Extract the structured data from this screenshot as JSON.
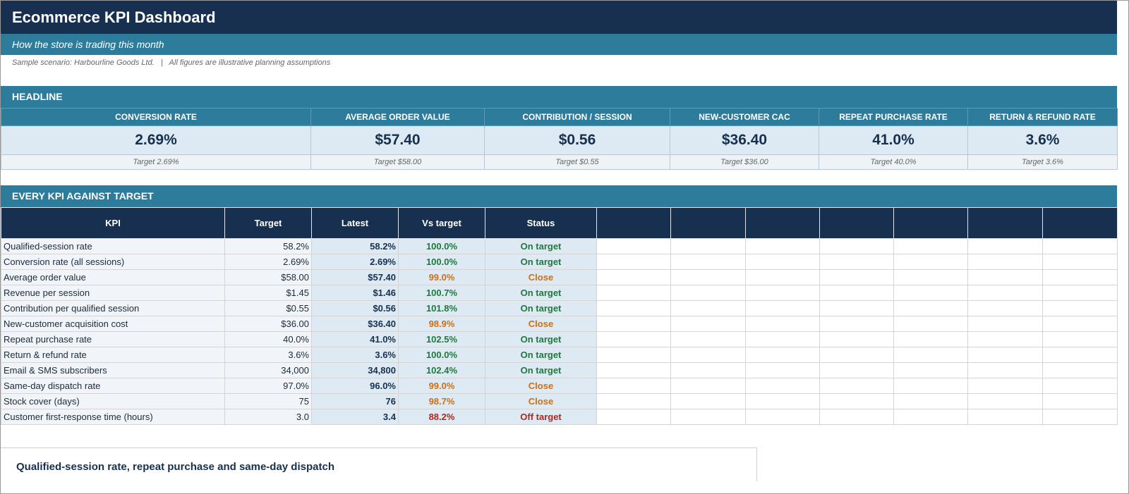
{
  "header": {
    "title": "Ecommerce KPI Dashboard",
    "subtitle": "How the store is trading this month",
    "sample_note": "Sample scenario: Harbourline Goods Ltd.   |   All figures are illustrative planning assumptions"
  },
  "headline": {
    "section_label": "HEADLINE",
    "cards": [
      {
        "label": "CONVERSION RATE",
        "value": "2.69%",
        "target": "Target 2.69%"
      },
      {
        "label": "AVERAGE ORDER VALUE",
        "value": "$57.40",
        "target": "Target $58.00"
      },
      {
        "label": "CONTRIBUTION / SESSION",
        "value": "$0.56",
        "target": "Target $0.55"
      },
      {
        "label": "NEW-CUSTOMER CAC",
        "value": "$36.40",
        "target": "Target $36.00"
      },
      {
        "label": "REPEAT PURCHASE RATE",
        "value": "41.0%",
        "target": "Target 40.0%"
      },
      {
        "label": "RETURN & REFUND RATE",
        "value": "3.6%",
        "target": "Target 3.6%"
      }
    ]
  },
  "kpi_table": {
    "section_label": "EVERY KPI AGAINST TARGET",
    "columns": [
      "KPI",
      "Target",
      "Latest",
      "Vs target",
      "Status"
    ],
    "rows": [
      {
        "kpi": "Qualified-session rate",
        "target": "58.2%",
        "latest": "58.2%",
        "vs": "100.0%",
        "status": "On target",
        "level": "green"
      },
      {
        "kpi": "Conversion rate (all sessions)",
        "target": "2.69%",
        "latest": "2.69%",
        "vs": "100.0%",
        "status": "On target",
        "level": "green"
      },
      {
        "kpi": "Average order value",
        "target": "$58.00",
        "latest": "$57.40",
        "vs": "99.0%",
        "status": "Close",
        "level": "orange"
      },
      {
        "kpi": "Revenue per session",
        "target": "$1.45",
        "latest": "$1.46",
        "vs": "100.7%",
        "status": "On target",
        "level": "green"
      },
      {
        "kpi": "Contribution per qualified session",
        "target": "$0.55",
        "latest": "$0.56",
        "vs": "101.8%",
        "status": "On target",
        "level": "green"
      },
      {
        "kpi": "New-customer acquisition cost",
        "target": "$36.00",
        "latest": "$36.40",
        "vs": "98.9%",
        "status": "Close",
        "level": "orange"
      },
      {
        "kpi": "Repeat purchase rate",
        "target": "40.0%",
        "latest": "41.0%",
        "vs": "102.5%",
        "status": "On target",
        "level": "green"
      },
      {
        "kpi": "Return & refund rate",
        "target": "3.6%",
        "latest": "3.6%",
        "vs": "100.0%",
        "status": "On target",
        "level": "green"
      },
      {
        "kpi": "Email & SMS subscribers",
        "target": "34,000",
        "latest": "34,800",
        "vs": "102.4%",
        "status": "On target",
        "level": "green"
      },
      {
        "kpi": "Same-day dispatch rate",
        "target": "97.0%",
        "latest": "96.0%",
        "vs": "99.0%",
        "status": "Close",
        "level": "orange"
      },
      {
        "kpi": "Stock cover (days)",
        "target": "75",
        "latest": "76",
        "vs": "98.7%",
        "status": "Close",
        "level": "orange"
      },
      {
        "kpi": "Customer first-response time (hours)",
        "target": "3.0",
        "latest": "3.4",
        "vs": "88.2%",
        "status": "Off target",
        "level": "red"
      }
    ]
  },
  "chart": {
    "title": "Qualified-session rate, repeat purchase and same-day dispatch"
  },
  "colors": {
    "navy": "#17304f",
    "teal": "#2e7c9b",
    "on_target": "#1e7a3a",
    "close": "#d06f12",
    "off_target": "#b3261e"
  }
}
